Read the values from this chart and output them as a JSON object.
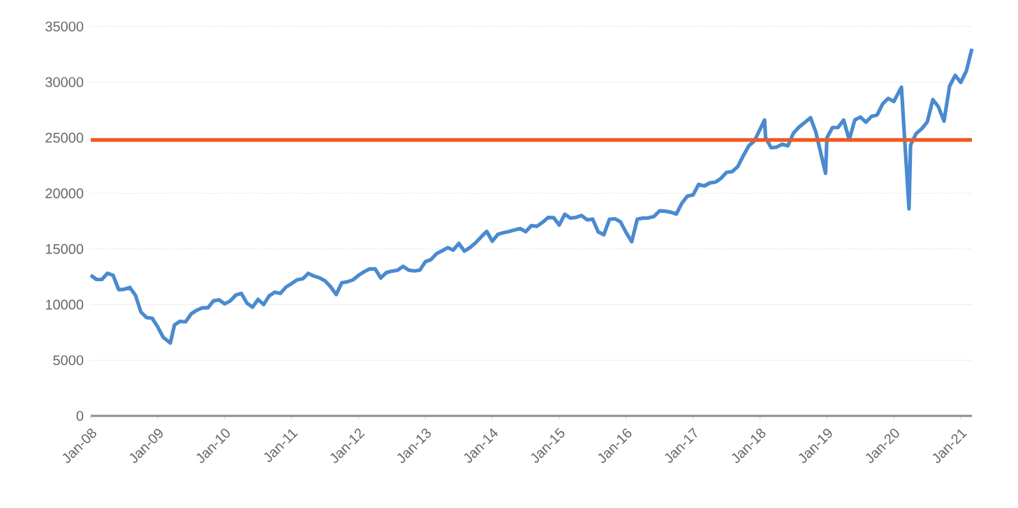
{
  "chart_data": {
    "type": "line",
    "x": [
      "2008-01",
      "2008-02",
      "2008-03",
      "2008-04",
      "2008-05",
      "2008-06",
      "2008-07",
      "2008-08",
      "2008-09",
      "2008-10",
      "2008-11",
      "2008-12",
      "2009-01",
      "2009-02",
      "2009-03-09",
      "2009-04",
      "2009-05",
      "2009-06",
      "2009-07",
      "2009-08",
      "2009-09",
      "2009-10",
      "2009-11",
      "2009-12",
      "2010-01",
      "2010-02",
      "2010-03",
      "2010-04",
      "2010-05",
      "2010-06",
      "2010-07",
      "2010-08",
      "2010-09",
      "2010-10",
      "2010-11",
      "2010-12",
      "2011-01",
      "2011-02",
      "2011-03",
      "2011-04",
      "2011-05",
      "2011-06",
      "2011-07",
      "2011-08",
      "2011-09",
      "2011-10",
      "2011-11",
      "2011-12",
      "2012-01",
      "2012-02",
      "2012-03",
      "2012-04",
      "2012-05",
      "2012-06",
      "2012-07",
      "2012-08",
      "2012-09",
      "2012-10",
      "2012-11",
      "2012-12",
      "2013-01",
      "2013-02",
      "2013-03",
      "2013-04",
      "2013-05",
      "2013-06",
      "2013-07",
      "2013-08",
      "2013-09",
      "2013-10",
      "2013-11",
      "2013-12",
      "2014-01",
      "2014-02",
      "2014-03",
      "2014-04",
      "2014-05",
      "2014-06",
      "2014-07",
      "2014-08",
      "2014-09",
      "2014-10",
      "2014-11",
      "2014-12",
      "2015-01",
      "2015-02",
      "2015-03",
      "2015-04",
      "2015-05",
      "2015-06",
      "2015-07",
      "2015-08",
      "2015-09",
      "2015-10",
      "2015-11",
      "2015-12",
      "2016-01",
      "2016-02",
      "2016-03",
      "2016-04",
      "2016-05",
      "2016-06",
      "2016-07",
      "2016-08",
      "2016-09",
      "2016-10",
      "2016-11",
      "2016-12",
      "2017-01",
      "2017-02",
      "2017-03",
      "2017-04",
      "2017-05",
      "2017-06",
      "2017-07",
      "2017-08",
      "2017-09",
      "2017-10",
      "2017-11",
      "2017-12",
      "2018-01-26",
      "2018-02",
      "2018-03",
      "2018-04",
      "2018-05",
      "2018-06",
      "2018-07",
      "2018-08",
      "2018-10-03",
      "2018-11",
      "2018-12-24",
      "2019-01",
      "2019-02",
      "2019-03",
      "2019-04",
      "2019-05",
      "2019-06",
      "2019-07",
      "2019-08",
      "2019-09",
      "2019-10",
      "2019-11",
      "2019-12",
      "2020-01",
      "2020-02-12",
      "2020-03-23",
      "2020-04",
      "2020-05",
      "2020-06",
      "2020-07",
      "2020-08",
      "2020-09",
      "2020-10",
      "2020-11",
      "2020-12",
      "2021-01",
      "2021-02",
      "2021-03"
    ],
    "series": [
      {
        "color": "#4a8ad0",
        "values": [
          12650,
          12270,
          12260,
          12820,
          12640,
          11350,
          11380,
          11540,
          10850,
          9330,
          8830,
          8780,
          8000,
          7060,
          6550,
          8170,
          8500,
          8450,
          9170,
          9500,
          9710,
          9710,
          10340,
          10430,
          10070,
          10330,
          10860,
          11010,
          10140,
          9770,
          10470,
          10010,
          10790,
          11120,
          11010,
          11580,
          11890,
          12230,
          12320,
          12810,
          12570,
          12410,
          12140,
          11610,
          10910,
          11960,
          12050,
          12220,
          12630,
          12950,
          13210,
          13210,
          12390,
          12880,
          13010,
          13090,
          13440,
          13100,
          13030,
          13100,
          13860,
          14050,
          14580,
          14840,
          15120,
          14910,
          15500,
          14810,
          15130,
          15550,
          16090,
          16580,
          15700,
          16320,
          16460,
          16580,
          16720,
          16830,
          16560,
          17100,
          17040,
          17390,
          17830,
          17820,
          17160,
          18130,
          17780,
          17840,
          18010,
          17620,
          17690,
          16530,
          16280,
          17660,
          17720,
          17430,
          16470,
          15660,
          17690,
          17770,
          17790,
          17930,
          18430,
          18400,
          18310,
          18140,
          19120,
          19760,
          19860,
          20810,
          20660,
          20940,
          21010,
          21350,
          21890,
          21950,
          22400,
          23380,
          24270,
          24720,
          26600,
          25030,
          24100,
          24160,
          24420,
          24270,
          25420,
          25960,
          26800,
          25540,
          21800,
          25000,
          25920,
          25930,
          26590,
          24820,
          26600,
          26860,
          26400,
          26920,
          27050,
          28050,
          28540,
          28260,
          29550,
          18600,
          24350,
          25380,
          25810,
          26430,
          28430,
          27780,
          26500,
          29640,
          30610,
          29980,
          31000,
          33000
        ]
      }
    ],
    "xlim": [
      "2008-01",
      "2021-03"
    ],
    "xticks": [
      {
        "value": "2008-01",
        "label": "Jan-08"
      },
      {
        "value": "2009-01",
        "label": "Jan-09"
      },
      {
        "value": "2010-01",
        "label": "Jan-10"
      },
      {
        "value": "2011-01",
        "label": "Jan-11"
      },
      {
        "value": "2012-01",
        "label": "Jan-12"
      },
      {
        "value": "2013-01",
        "label": "Jan-13"
      },
      {
        "value": "2014-01",
        "label": "Jan-14"
      },
      {
        "value": "2015-01",
        "label": "Jan-15"
      },
      {
        "value": "2016-01",
        "label": "Jan-16"
      },
      {
        "value": "2017-01",
        "label": "Jan-17"
      },
      {
        "value": "2018-01",
        "label": "Jan-18"
      },
      {
        "value": "2019-01",
        "label": "Jan-19"
      },
      {
        "value": "2020-01",
        "label": "Jan-20"
      },
      {
        "value": "2021-01",
        "label": "Jan-21"
      }
    ],
    "ylim": [
      0,
      35000
    ],
    "yticks": [
      0,
      5000,
      10000,
      15000,
      20000,
      25000,
      30000,
      35000
    ],
    "grid": "y",
    "ref_lines": [
      {
        "axis": "y",
        "value": 24800,
        "color": "#f05a22"
      }
    ]
  }
}
